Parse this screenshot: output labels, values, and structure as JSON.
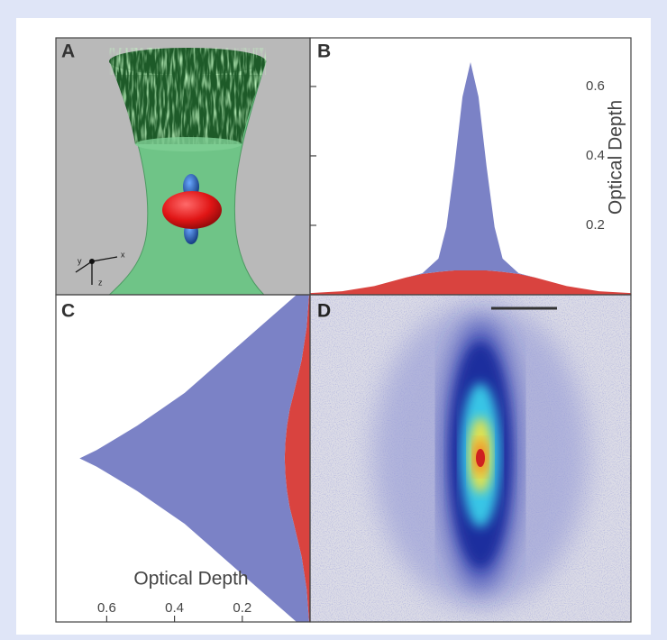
{
  "figure": {
    "panel_labels": [
      "A",
      "B",
      "C",
      "D"
    ],
    "axis_icon": [
      "x",
      "y",
      "z"
    ]
  },
  "chart_data": [
    {
      "type": "area",
      "orientation": "vertical",
      "ylabel": "Optical Depth",
      "x": [
        -1,
        -0.8,
        -0.6,
        -0.4,
        -0.3,
        -0.2,
        -0.15,
        -0.1,
        -0.05,
        0,
        0.05,
        0.1,
        0.15,
        0.2,
        0.3,
        0.4,
        0.6,
        0.8,
        1
      ],
      "xlim": [
        -1,
        1
      ],
      "ylim": [
        0,
        0.74
      ],
      "yticks": [
        0.2,
        0.4,
        0.6
      ],
      "series": [
        {
          "color": "#d9433f",
          "values": [
            0.005,
            0.01,
            0.025,
            0.05,
            0.06,
            0.066,
            0.068,
            0.07,
            0.07,
            0.07,
            0.07,
            0.07,
            0.068,
            0.066,
            0.06,
            0.05,
            0.025,
            0.01,
            0.005
          ]
        },
        {
          "color": "#7b82c6",
          "values": [
            0,
            0,
            0,
            0,
            0.002,
            0.038,
            0.127,
            0.3,
            0.5,
            0.6,
            0.5,
            0.3,
            0.127,
            0.038,
            0.002,
            0,
            0,
            0,
            0
          ]
        }
      ]
    },
    {
      "type": "area",
      "orientation": "horizontal",
      "xlabel": "Optical Depth",
      "y": [
        -1,
        -0.8,
        -0.6,
        -0.4,
        -0.3,
        -0.2,
        -0.1,
        -0.05,
        0,
        0.05,
        0.1,
        0.2,
        0.3,
        0.4,
        0.6,
        0.8,
        1
      ],
      "ylim": [
        -1,
        1
      ],
      "xlim": [
        0.75,
        0
      ],
      "xticks": [
        0.6,
        0.4,
        0.2
      ],
      "series": [
        {
          "color": "#d9433f",
          "values": [
            0.003,
            0.01,
            0.025,
            0.048,
            0.06,
            0.068,
            0.073,
            0.074,
            0.075,
            0.074,
            0.073,
            0.068,
            0.06,
            0.048,
            0.025,
            0.01,
            0.003
          ]
        },
        {
          "color": "#7b82c6",
          "values": [
            0.037,
            0.14,
            0.235,
            0.322,
            0.38,
            0.442,
            0.517,
            0.556,
            0.605,
            0.556,
            0.517,
            0.442,
            0.38,
            0.322,
            0.235,
            0.14,
            0.037
          ]
        }
      ]
    }
  ]
}
